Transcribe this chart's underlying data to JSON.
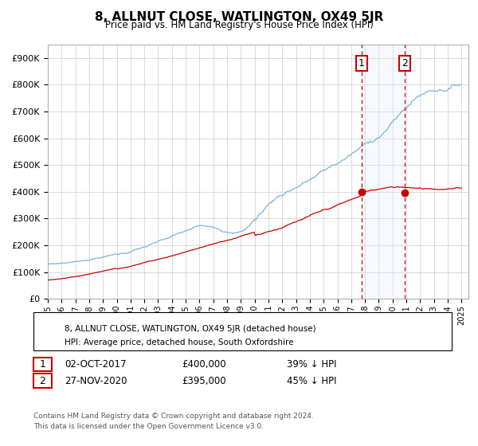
{
  "title": "8, ALLNUT CLOSE, WATLINGTON, OX49 5JR",
  "subtitle": "Price paid vs. HM Land Registry's House Price Index (HPI)",
  "ylim": [
    0,
    950000
  ],
  "yticks": [
    0,
    100000,
    200000,
    300000,
    400000,
    500000,
    600000,
    700000,
    800000,
    900000
  ],
  "ytick_labels": [
    "£0",
    "£100K",
    "£200K",
    "£300K",
    "£400K",
    "£500K",
    "£600K",
    "£700K",
    "£800K",
    "£900K"
  ],
  "xlim_start": 1995.0,
  "xlim_end": 2025.5,
  "hpi_color": "#7ab3d9",
  "price_color": "#cc0000",
  "marker1_x": 2017.75,
  "marker1_y": 400000,
  "marker1_label": "1",
  "marker1_date": "02-OCT-2017",
  "marker1_price": "£400,000",
  "marker1_note": "39% ↓ HPI",
  "marker2_x": 2020.9,
  "marker2_y": 395000,
  "marker2_label": "2",
  "marker2_date": "27-NOV-2020",
  "marker2_price": "£395,000",
  "marker2_note": "45% ↓ HPI",
  "shade_color": "#ddeeff",
  "legend_line1": "8, ALLNUT CLOSE, WATLINGTON, OX49 5JR (detached house)",
  "legend_line2": "HPI: Average price, detached house, South Oxfordshire",
  "footer": "Contains HM Land Registry data © Crown copyright and database right 2024.\nThis data is licensed under the Open Government Licence v3.0."
}
